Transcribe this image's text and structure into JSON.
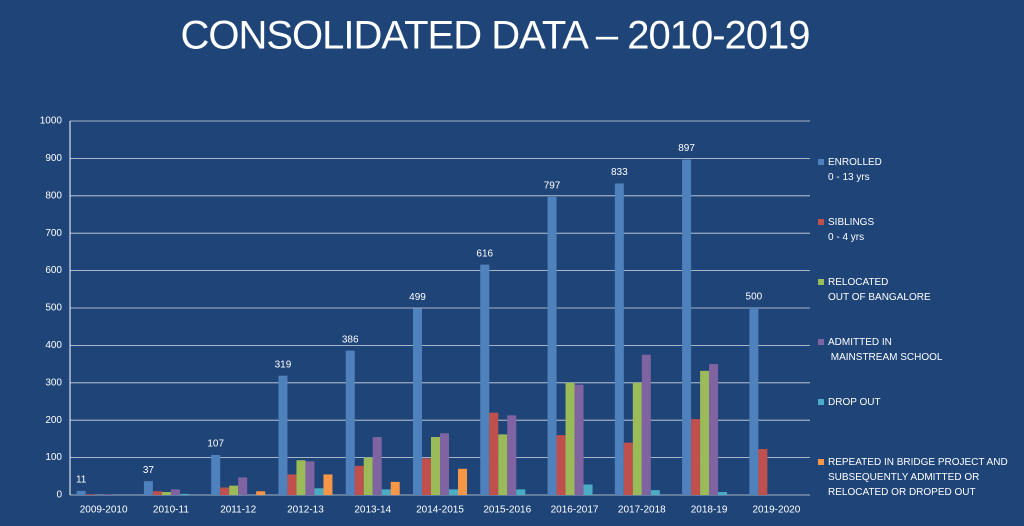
{
  "chart_data": {
    "type": "bar",
    "title": "CONSOLIDATED DATA – 2010-2019",
    "categories": [
      "2009-2010",
      "2010-11",
      "2011-12",
      "2012-13",
      "2013-14",
      "2014-2015",
      "2015-2016",
      "2016-2017",
      "2017-2018",
      "2018-19",
      "2019-2020"
    ],
    "series": [
      {
        "name": "ENROLLED\n0 - 13 yrs",
        "color": "#4f81bd",
        "data_labels": true,
        "values": [
          11,
          37,
          107,
          319,
          386,
          499,
          616,
          797,
          833,
          897,
          500
        ]
      },
      {
        "name": "SIBLINGS\n0 - 4 yrs",
        "color": "#c0504d",
        "values": [
          2,
          10,
          20,
          55,
          78,
          98,
          220,
          160,
          140,
          203,
          123
        ]
      },
      {
        "name": "RELOCATED\nOUT OF BANGALORE",
        "color": "#9bbb59",
        "values": [
          0,
          8,
          25,
          93,
          100,
          155,
          162,
          300,
          300,
          332,
          null
        ]
      },
      {
        "name": "ADMITTED IN\n MAINSTREAM SCHOOL",
        "color": "#8064a2",
        "values": [
          2,
          15,
          47,
          90,
          155,
          165,
          213,
          295,
          375,
          350,
          null
        ]
      },
      {
        "name": "DROP OUT",
        "color": "#4bacc6",
        "values": [
          0,
          3,
          0,
          18,
          15,
          15,
          15,
          28,
          13,
          8,
          null
        ]
      },
      {
        "name": "REPEATED IN BRIDGE PROJECT AND\nSUBSEQUENTLY ADMITTED OR\nRELOCATED OR DROPED OUT",
        "color": "#f79646",
        "values": [
          0,
          0,
          10,
          55,
          35,
          70,
          null,
          null,
          null,
          null,
          null
        ]
      }
    ],
    "ylim": [
      0,
      1000
    ],
    "yticks": [
      0,
      100,
      200,
      300,
      400,
      500,
      600,
      700,
      800,
      900,
      1000
    ],
    "grid": true
  }
}
